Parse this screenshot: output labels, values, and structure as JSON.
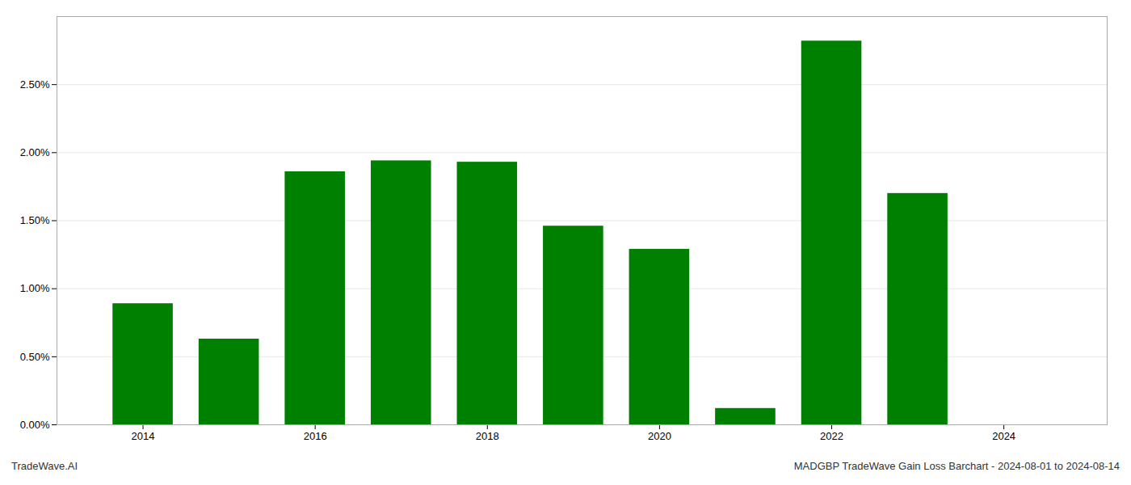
{
  "chart_data": {
    "type": "bar",
    "x": [
      2014,
      2015,
      2016,
      2017,
      2018,
      2019,
      2020,
      2021,
      2022,
      2023,
      2024
    ],
    "values": [
      0.0089,
      0.0063,
      0.0186,
      0.0194,
      0.0193,
      0.0146,
      0.0129,
      0.0012,
      0.0282,
      0.017,
      0.0
    ],
    "color": "#008000",
    "xlim": [
      2013.0,
      2025.2
    ],
    "xticks": [
      2014,
      2016,
      2018,
      2020,
      2022,
      2024
    ],
    "ylim": [
      0,
      0.03
    ],
    "yticks": [
      {
        "value": 0.0,
        "label": "0.00%"
      },
      {
        "value": 0.005,
        "label": "0.50%"
      },
      {
        "value": 0.01,
        "label": "1.00%"
      },
      {
        "value": 0.015,
        "label": "1.50%"
      },
      {
        "value": 0.02,
        "label": "2.00%"
      },
      {
        "value": 0.025,
        "label": "2.50%"
      }
    ],
    "grid": true,
    "annotations": [
      "TradeWave.AI",
      "MADGBP TradeWave Gain Loss Barchart - 2024-08-01 to 2024-08-14"
    ]
  }
}
